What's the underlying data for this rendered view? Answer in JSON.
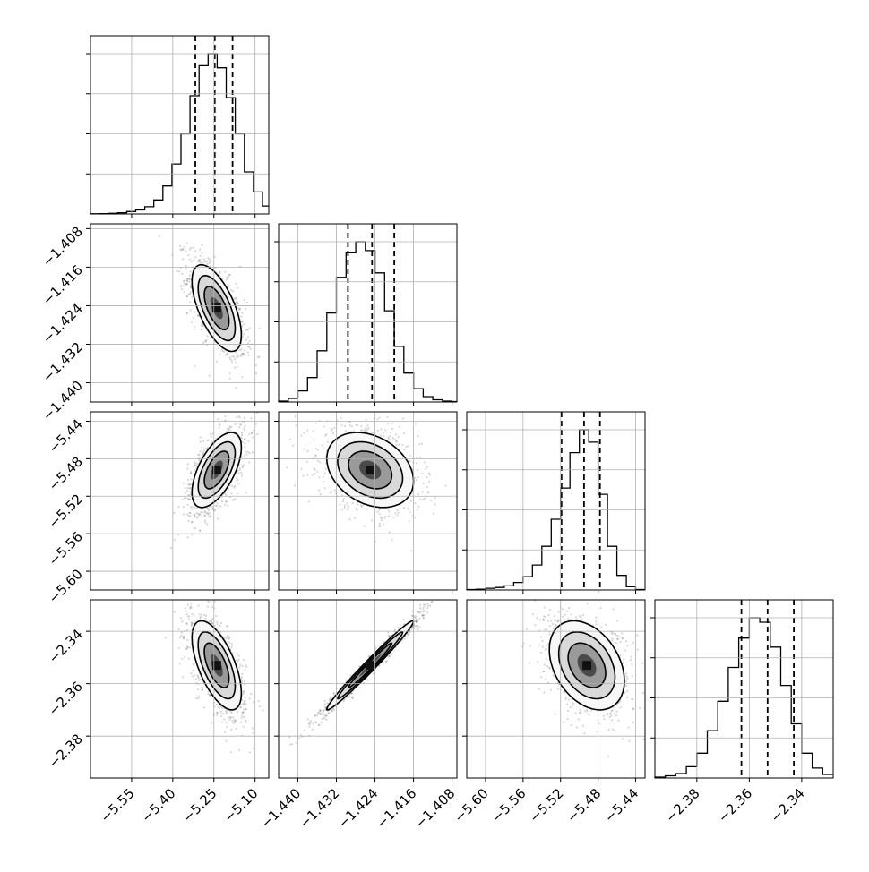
{
  "chart_data": {
    "type": "corner",
    "grid": true,
    "parameters": [
      {
        "axis_range": [
          -5.7,
          -5.05
        ],
        "ticks": [
          -5.55,
          -5.4,
          -5.25,
          -5.1
        ],
        "tick_labels": [
          "−5.55",
          "−5.40",
          "−5.25",
          "−5.10"
        ],
        "quantiles": [
          -5.318,
          -5.247,
          -5.182
        ],
        "hist_bins": [
          -5.7,
          -5.667,
          -5.634,
          -5.601,
          -5.568,
          -5.535,
          -5.502,
          -5.469,
          -5.436,
          -5.403,
          -5.37,
          -5.337,
          -5.304,
          -5.271,
          -5.238,
          -5.205,
          -5.172,
          -5.139,
          -5.106,
          -5.073,
          -5.05
        ],
        "hist_counts": [
          0.5,
          1,
          1.5,
          3,
          6,
          10,
          18,
          35,
          70,
          125,
          200,
          295,
          370,
          400,
          365,
          290,
          200,
          105,
          55,
          20
        ]
      },
      {
        "axis_range": [
          -1.444,
          -1.407
        ],
        "ticks": [
          -1.44,
          -1.432,
          -1.424,
          -1.416,
          -1.408
        ],
        "tick_labels": [
          "−1.440",
          "−1.432",
          "−1.424",
          "−1.416",
          "−1.408"
        ],
        "quantiles": [
          -1.4296,
          -1.4246,
          -1.42
        ],
        "hist_bins": [
          -1.444,
          -1.442,
          -1.44,
          -1.438,
          -1.436,
          -1.434,
          -1.432,
          -1.43,
          -1.428,
          -1.426,
          -1.424,
          -1.422,
          -1.42,
          -1.418,
          -1.416,
          -1.414,
          -1.412,
          -1.41,
          -1.408,
          -1.407
        ],
        "hist_counts": [
          2,
          8,
          25,
          55,
          115,
          200,
          280,
          335,
          360,
          340,
          290,
          205,
          125,
          65,
          30,
          12,
          5,
          2,
          1
        ]
      },
      {
        "axis_range": [
          -5.62,
          -5.43
        ],
        "ticks": [
          -5.6,
          -5.56,
          -5.52,
          -5.48,
          -5.44
        ],
        "tick_labels": [
          "−5.60",
          "−5.56",
          "−5.52",
          "−5.48",
          "−5.44"
        ],
        "quantiles": [
          -5.519,
          -5.495,
          -5.478
        ],
        "hist_bins": [
          -5.62,
          -5.61,
          -5.6,
          -5.59,
          -5.58,
          -5.57,
          -5.56,
          -5.55,
          -5.54,
          -5.53,
          -5.52,
          -5.51,
          -5.5,
          -5.49,
          -5.48,
          -5.47,
          -5.46,
          -5.45,
          -5.44,
          -5.43
        ],
        "hist_counts": [
          1,
          2,
          4,
          6,
          10,
          18,
          32,
          60,
          105,
          170,
          245,
          330,
          385,
          355,
          230,
          105,
          35,
          8,
          1
        ]
      },
      {
        "axis_range": [
          -2.396,
          -2.328
        ],
        "ticks": [
          -2.38,
          -2.36,
          -2.34
        ],
        "tick_labels": [
          "−2.38",
          "−2.36",
          "−2.34"
        ],
        "quantiles": [
          -2.363,
          -2.353,
          -2.343
        ],
        "hist_bins": [
          -2.396,
          -2.392,
          -2.388,
          -2.384,
          -2.38,
          -2.376,
          -2.372,
          -2.368,
          -2.364,
          -2.36,
          -2.356,
          -2.352,
          -2.348,
          -2.344,
          -2.34,
          -2.336,
          -2.332,
          -2.328
        ],
        "hist_counts": [
          2,
          5,
          10,
          25,
          55,
          105,
          170,
          245,
          310,
          355,
          345,
          290,
          205,
          120,
          55,
          22,
          8
        ]
      }
    ],
    "contours_2d": [
      {
        "pair": [
          1,
          0
        ],
        "center": [
          -5.24,
          -1.4245
        ],
        "sigma": [
          0.045,
          0.0045
        ],
        "corr": -0.62
      },
      {
        "pair": [
          2,
          0
        ],
        "center": [
          -5.24,
          -5.492
        ],
        "sigma": [
          0.045,
          0.02
        ],
        "corr": 0.6
      },
      {
        "pair": [
          2,
          1
        ],
        "center": [
          -1.425,
          -5.492
        ],
        "sigma": [
          0.0045,
          0.02
        ],
        "corr": -0.3
      },
      {
        "pair": [
          3,
          0
        ],
        "center": [
          -5.24,
          -2.353
        ],
        "sigma": [
          0.045,
          0.0085
        ],
        "corr": -0.62
      },
      {
        "pair": [
          3,
          1
        ],
        "center": [
          -1.425,
          -2.353
        ],
        "sigma": [
          0.0045,
          0.0085
        ],
        "corr": 0.985
      },
      {
        "pair": [
          3,
          2
        ],
        "center": [
          -5.492,
          -2.353
        ],
        "sigma": [
          0.02,
          0.0085
        ],
        "corr": -0.35
      }
    ],
    "contour_levels_sigma": [
      0.5,
      1.0,
      1.5,
      2.0
    ]
  }
}
